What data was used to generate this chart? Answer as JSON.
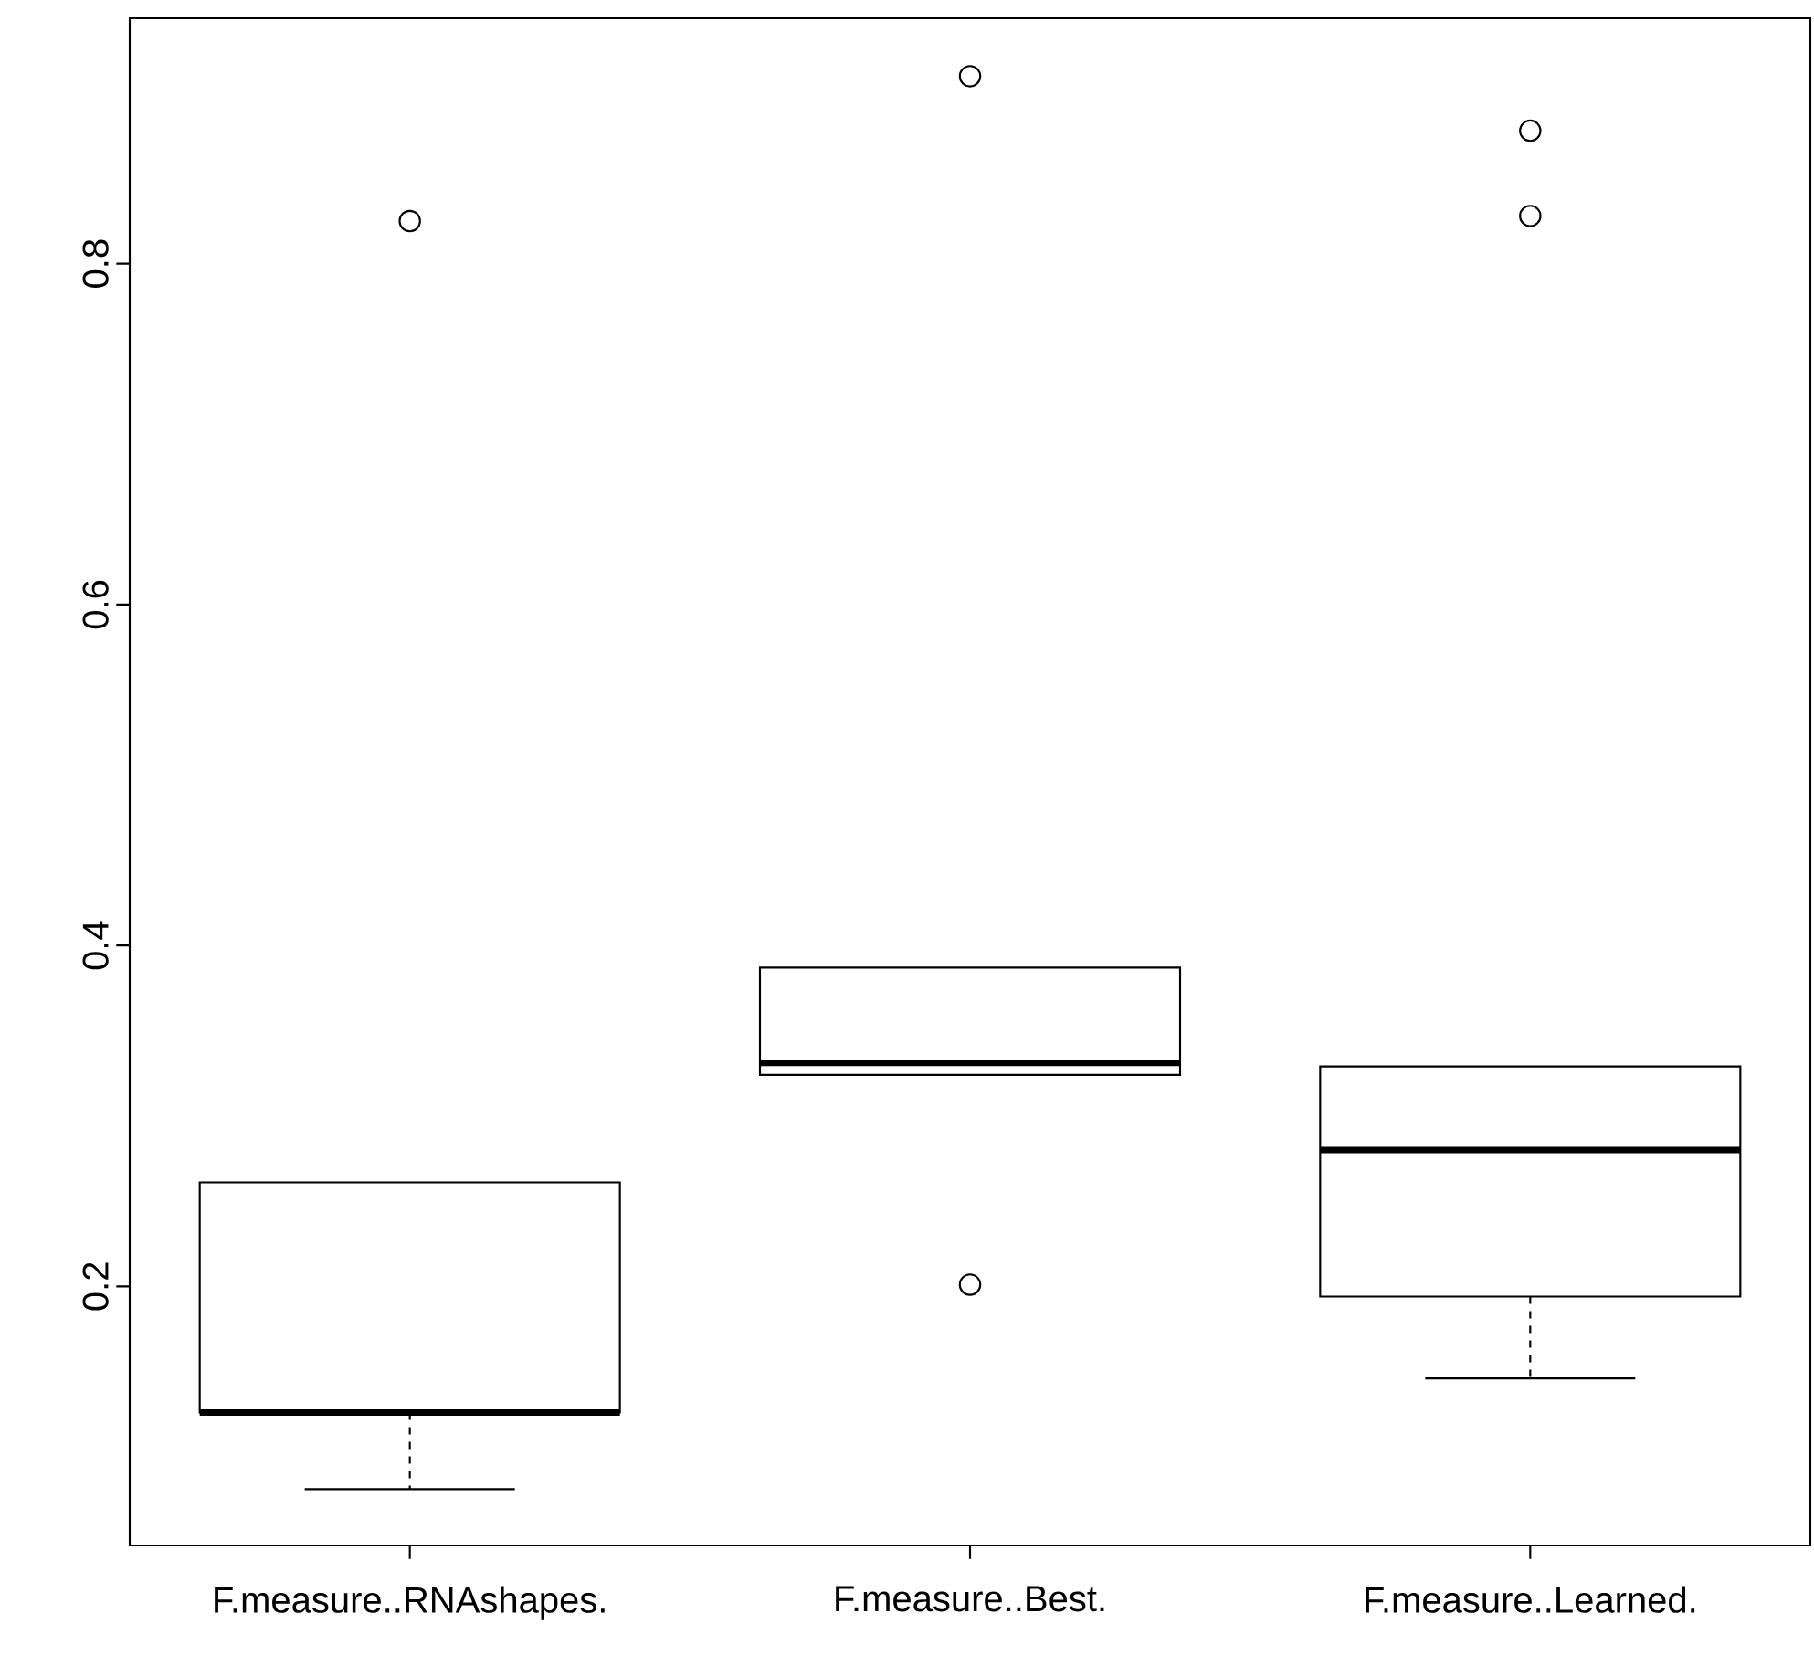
{
  "chart_data": {
    "type": "box",
    "categories": [
      "F.measure..RNAshapes.",
      "F.measure..Best.",
      "F.measure..Learned."
    ],
    "boxes": [
      {
        "low": 0.081,
        "q1": 0.126,
        "median": 0.126,
        "q3": 0.261,
        "high": 0.261,
        "outliers": [
          0.825
        ]
      },
      {
        "low": 0.324,
        "q1": 0.324,
        "median": 0.331,
        "q3": 0.387,
        "high": 0.387,
        "outliers": [
          0.91,
          0.201
        ]
      },
      {
        "low": 0.146,
        "q1": 0.194,
        "median": 0.28,
        "q3": 0.329,
        "high": 0.329,
        "outliers": [
          0.878,
          0.828
        ]
      }
    ],
    "ylim": [
      0.048,
      0.944
    ],
    "yticks": [
      0.2,
      0.4,
      0.6,
      0.8
    ]
  }
}
